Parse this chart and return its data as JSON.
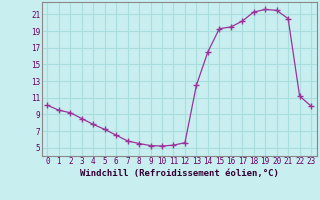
{
  "title": "",
  "xlabel": "Windchill (Refroidissement éolien,°C)",
  "ylabel": "",
  "background_color": "#c8eef0",
  "grid_color": "#aadddd",
  "line_color": "#993399",
  "marker_color": "#993399",
  "xlim": [
    -0.5,
    23.5
  ],
  "ylim": [
    4.0,
    22.5
  ],
  "yticks": [
    5,
    7,
    9,
    11,
    13,
    15,
    17,
    19,
    21
  ],
  "xticks": [
    0,
    1,
    2,
    3,
    4,
    5,
    6,
    7,
    8,
    9,
    10,
    11,
    12,
    13,
    14,
    15,
    16,
    17,
    18,
    19,
    20,
    21,
    22,
    23
  ],
  "hours": [
    0,
    1,
    2,
    3,
    4,
    5,
    6,
    7,
    8,
    9,
    10,
    11,
    12,
    13,
    14,
    15,
    16,
    17,
    18,
    19,
    20,
    21,
    22,
    23
  ],
  "values": [
    10.1,
    9.5,
    9.2,
    8.5,
    7.8,
    7.2,
    6.5,
    5.8,
    5.5,
    5.25,
    5.2,
    5.3,
    5.6,
    12.5,
    16.5,
    19.3,
    19.5,
    20.2,
    21.3,
    21.6,
    21.5,
    20.5,
    11.2,
    10.0
  ],
  "xlabel_fontsize": 6.5,
  "tick_fontsize": 5.5
}
